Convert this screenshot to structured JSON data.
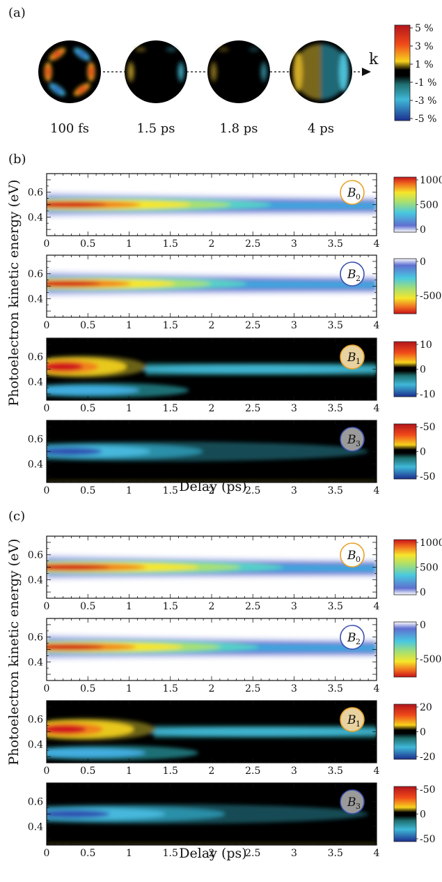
{
  "panel_labels": [
    "(a)",
    "(b)",
    "(c)"
  ],
  "panel_a": {
    "snapshots": [
      {
        "label": "100 fs",
        "pattern": "six-lobe"
      },
      {
        "label": "1.5 ps",
        "pattern": "two-lobe-weak"
      },
      {
        "label": "1.8 ps",
        "pattern": "two-lobe-weaker"
      },
      {
        "label": "4 ps",
        "pattern": "half-disc"
      }
    ],
    "k_label": "k",
    "colorbar": {
      "ticks": [
        "5 %",
        "3 %",
        "1 %",
        "-1 %",
        "-3 %",
        "-5 %"
      ],
      "colors_top_to_bottom": [
        "#b3141b",
        "#f04a1a",
        "#f7c31d",
        "#000000",
        "#3fa8c8",
        "#1c2f8f"
      ]
    }
  },
  "axes": {
    "xlabel": "Delay (ps)",
    "ylabel": "Photoelectron kinetic energy (eV)",
    "xticks": [
      "0",
      "0.5",
      "1",
      "1.5",
      "2",
      "2.5",
      "3",
      "3.5",
      "4"
    ],
    "yticks": [
      "0.6",
      "0.4"
    ]
  },
  "chart_data": [
    {
      "type": "heatmap",
      "panel": "(b)",
      "badge": "B",
      "badge_sub": "0",
      "x_range": [
        0,
        4
      ],
      "y_range": [
        0.25,
        0.75
      ],
      "center_energy": 0.5,
      "peak_value": 1000,
      "decay_ps": 1.8,
      "colorbar_ticks": [
        "1000",
        "500",
        "0"
      ],
      "colormap": "jet-white"
    },
    {
      "type": "heatmap",
      "panel": "(b)",
      "badge": "B",
      "badge_sub": "2",
      "x_range": [
        0,
        4
      ],
      "y_range": [
        0.25,
        0.75
      ],
      "center_energy": 0.52,
      "peak_value": -800,
      "decay_ps": 1.6,
      "colorbar_ticks": [
        "0",
        "-500"
      ],
      "colormap": "jet-white-reversed"
    },
    {
      "type": "heatmap",
      "panel": "(b)",
      "badge": "B",
      "badge_sub": "1",
      "x_range": [
        0,
        4
      ],
      "y_range": [
        0.25,
        0.75
      ],
      "upper_lobe": {
        "energy": 0.52,
        "value": 12,
        "until_ps": 1.1
      },
      "lower_lobe": {
        "energy": 0.33,
        "value": -8,
        "until_ps": 1.5
      },
      "late_band": {
        "energy": 0.5,
        "value": -6,
        "from_ps": 1.2
      },
      "colorbar_ticks": [
        "10",
        "0",
        "-10"
      ],
      "colormap": "diverging-black"
    },
    {
      "type": "heatmap",
      "panel": "(b)",
      "badge": "B",
      "badge_sub": "3",
      "x_range": [
        0,
        4
      ],
      "y_range": [
        0.25,
        0.75
      ],
      "center_energy": 0.5,
      "peak_value": -35,
      "decay_ps": 1.4,
      "colorbar_ticks": [
        "-50",
        "0",
        "-50"
      ],
      "colormap": "diverging-black"
    },
    {
      "type": "heatmap",
      "panel": "(c)",
      "badge": "B",
      "badge_sub": "0",
      "x_range": [
        0,
        4
      ],
      "y_range": [
        0.25,
        0.75
      ],
      "center_energy": 0.5,
      "peak_value": 1100,
      "decay_ps": 1.9,
      "colorbar_ticks": [
        "1000",
        "500",
        "0"
      ],
      "colormap": "jet-white"
    },
    {
      "type": "heatmap",
      "panel": "(c)",
      "badge": "B",
      "badge_sub": "2",
      "x_range": [
        0,
        4
      ],
      "y_range": [
        0.25,
        0.75
      ],
      "center_energy": 0.52,
      "peak_value": -850,
      "decay_ps": 1.7,
      "colorbar_ticks": [
        "0",
        "-500"
      ],
      "colormap": "jet-white-reversed"
    },
    {
      "type": "heatmap",
      "panel": "(c)",
      "badge": "B",
      "badge_sub": "1",
      "x_range": [
        0,
        4
      ],
      "y_range": [
        0.25,
        0.75
      ],
      "upper_lobe": {
        "energy": 0.52,
        "value": 16,
        "until_ps": 1.2
      },
      "lower_lobe": {
        "energy": 0.33,
        "value": -12,
        "until_ps": 1.6
      },
      "late_band": {
        "energy": 0.5,
        "value": -8,
        "from_ps": 1.3
      },
      "colorbar_ticks": [
        "20",
        "0",
        "-20"
      ],
      "colormap": "diverging-black"
    },
    {
      "type": "heatmap",
      "panel": "(c)",
      "badge": "B",
      "badge_sub": "3",
      "x_range": [
        0,
        4
      ],
      "y_range": [
        0.25,
        0.75
      ],
      "center_energy": 0.5,
      "peak_value": -40,
      "decay_ps": 1.6,
      "colorbar_ticks": [
        "-50",
        "0",
        "-50"
      ],
      "colormap": "diverging-black"
    }
  ]
}
